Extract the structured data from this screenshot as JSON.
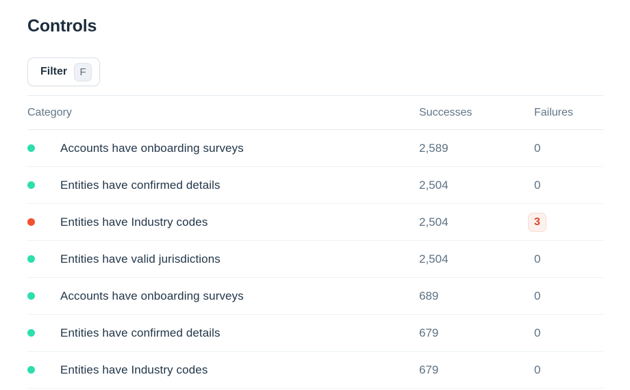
{
  "page": {
    "title": "Controls"
  },
  "toolbar": {
    "filter_label": "Filter",
    "filter_shortcut": "F"
  },
  "table": {
    "columns": {
      "category": "Category",
      "successes": "Successes",
      "failures": "Failures"
    },
    "rows": [
      {
        "status": "success",
        "category": "Accounts have onboarding surveys",
        "successes": "2,589",
        "failures": "0"
      },
      {
        "status": "success",
        "category": "Entities have confirmed details",
        "successes": "2,504",
        "failures": "0"
      },
      {
        "status": "failure",
        "category": "Entities have Industry codes",
        "successes": "2,504",
        "failures": "3"
      },
      {
        "status": "success",
        "category": "Entities have valid jurisdictions",
        "successes": "2,504",
        "failures": "0"
      },
      {
        "status": "success",
        "category": "Accounts have onboarding surveys",
        "successes": "689",
        "failures": "0"
      },
      {
        "status": "success",
        "category": "Entities have confirmed details",
        "successes": "679",
        "failures": "0"
      },
      {
        "status": "success",
        "category": "Entities have Industry codes",
        "successes": "679",
        "failures": "0"
      }
    ]
  },
  "colors": {
    "success": "#2cdfac",
    "failure": "#f3512e",
    "badge_bg": "#fdf1ed",
    "badge_border": "#f8ddd2",
    "badge_text": "#d9452a"
  }
}
